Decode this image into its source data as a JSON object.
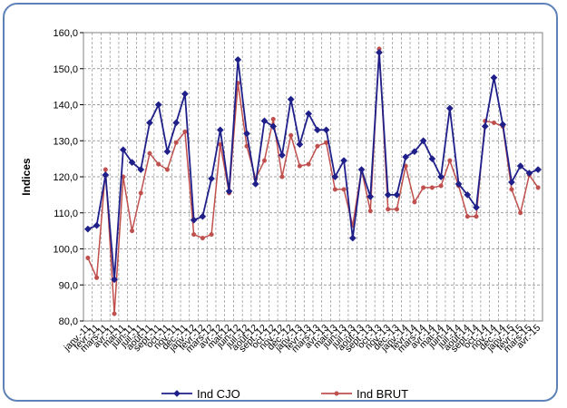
{
  "chart_data": {
    "type": "line",
    "title": "",
    "xlabel": "",
    "ylabel": "Indices",
    "ylim": [
      80,
      160
    ],
    "yticks": [
      "80,0",
      "90,0",
      "100,0",
      "110,0",
      "120,0",
      "130,0",
      "140,0",
      "150,0",
      "160,0"
    ],
    "grid": true,
    "legend_position": "bottom",
    "categories": [
      "janv.-11",
      "févr.-11",
      "mars-11",
      "avr.-11",
      "mai-11",
      "juin-11",
      "juil.-11",
      "août-11",
      "sept.-11",
      "oct.-11",
      "nov.-11",
      "déc.-11",
      "janv.-12",
      "févr.-12",
      "mars-12",
      "avr.-12",
      "mai-12",
      "juin-12",
      "juil.-12",
      "août-12",
      "sept.-12",
      "oct.-12",
      "nov.-12",
      "déc.-12",
      "janv.-13",
      "févr.-13",
      "mars-13",
      "avr.-13",
      "mai-13",
      "juin-13",
      "juil.-13",
      "août-13",
      "sept.-13",
      "oct.-13",
      "nov.-13",
      "déc.-13",
      "janv.-14",
      "févr.-14",
      "mars-14",
      "avr.-14",
      "mai-14",
      "juin-14",
      "juil.-14",
      "août-14",
      "sept.-14",
      "oct.-14",
      "nov.-14",
      "déc.-14",
      "janv.-15",
      "févr.-15",
      "mars-15",
      "avr.-15"
    ],
    "series": [
      {
        "name": "Ind CJO",
        "color": "#1f1f8a",
        "marker": "diamond",
        "values": [
          105.5,
          106.5,
          120.5,
          91.5,
          127.5,
          124,
          122,
          135,
          140,
          127,
          135,
          143,
          108,
          109,
          119.5,
          133,
          116,
          152.5,
          132,
          118,
          135.5,
          134,
          126,
          141.5,
          129,
          137.5,
          133,
          133,
          120,
          124.5,
          103,
          122,
          114.5,
          154.5,
          115,
          115,
          125.5,
          127,
          130,
          125,
          120,
          139,
          118,
          115,
          111.5,
          134,
          147.5,
          134.5,
          118.5,
          123,
          121,
          122
        ]
      },
      {
        "name": "Ind BRUT",
        "color": "#c0504d",
        "marker": "circle",
        "values": [
          97.5,
          92,
          122,
          82,
          120,
          105,
          115.5,
          126.5,
          123.5,
          122,
          129.5,
          132.5,
          104,
          103,
          104,
          129,
          115.5,
          146,
          128.5,
          119.5,
          124.5,
          136,
          120,
          131.5,
          123,
          123.5,
          128.5,
          129.5,
          116.5,
          116.5,
          106.5,
          122,
          110.5,
          155.5,
          111,
          111,
          123,
          113,
          117,
          117,
          117.5,
          124.5,
          117.5,
          109,
          109,
          135.5,
          135,
          134,
          116.5,
          110,
          120.5,
          117
        ]
      }
    ]
  }
}
